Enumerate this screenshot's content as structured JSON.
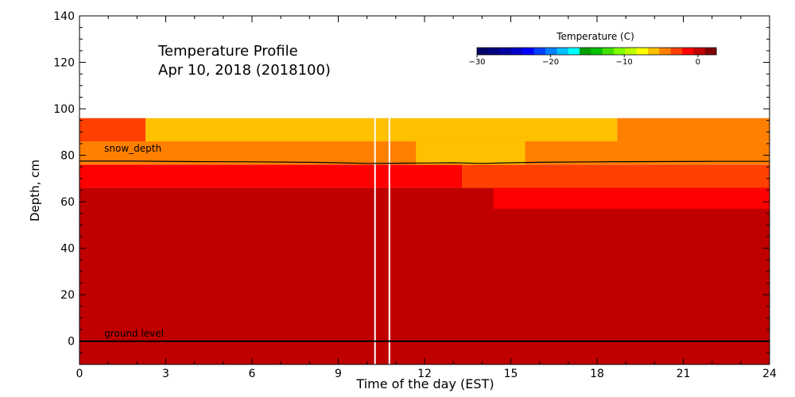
{
  "chart_data": {
    "type": "heatmap",
    "title_line1": "Temperature Profile",
    "title_line2": "Apr 10, 2018 (2018100)",
    "xlabel": "Time of the day (EST)",
    "ylabel": "Depth, cm",
    "xlim": [
      0,
      24
    ],
    "ylim": [
      -10,
      140
    ],
    "x_ticks": [
      0,
      3,
      6,
      9,
      12,
      15,
      18,
      21,
      24
    ],
    "y_ticks": [
      0,
      20,
      40,
      60,
      80,
      100,
      120,
      140
    ],
    "colorbar": {
      "title": "Temperature (C)",
      "range": [
        -30,
        2.5
      ],
      "tick_values": [
        -30,
        -20,
        -10,
        0
      ],
      "tick_labels": [
        "−30",
        "−20",
        "−10",
        "0"
      ],
      "colors": [
        "#000066",
        "#000080",
        "#0000a0",
        "#0000c8",
        "#0000ff",
        "#0040ff",
        "#0080ff",
        "#00c0ff",
        "#00ffff",
        "#00a000",
        "#00c000",
        "#40e000",
        "#80ff00",
        "#c0ff00",
        "#ffff00",
        "#ffc000",
        "#ff8000",
        "#ff4000",
        "#ff0000",
        "#c00000",
        "#800000"
      ]
    },
    "annotations": [
      {
        "text": "snow_depth",
        "x": 1.0,
        "y": 80.5
      },
      {
        "text": "ground level",
        "x": 1.0,
        "y": 1.0
      }
    ],
    "cells": [
      {
        "x0": 0,
        "x1": 24,
        "y0": -10,
        "y1": 66,
        "temp": 0.8
      },
      {
        "x0": 0,
        "x1": 13.3,
        "y0": 66,
        "y1": 76,
        "temp": -1
      },
      {
        "x0": 13.3,
        "x1": 24,
        "y0": 66,
        "y1": 76,
        "temp": -2.5
      },
      {
        "x0": 14.4,
        "x1": 24,
        "y0": 57,
        "y1": 66,
        "temp": -1
      },
      {
        "x0": 0,
        "x1": 24,
        "y0": 76,
        "y1": 86,
        "temp": -4
      },
      {
        "x0": 11.7,
        "x1": 15.5,
        "y0": 76,
        "y1": 86,
        "temp": -6.5
      },
      {
        "x0": 0,
        "x1": 2.3,
        "y0": 86,
        "y1": 96,
        "temp": -2.5
      },
      {
        "x0": 2.3,
        "x1": 18.7,
        "y0": 86,
        "y1": 96,
        "temp": -6.5
      },
      {
        "x0": 18.7,
        "x1": 24,
        "y0": 86,
        "y1": 96,
        "temp": -4
      }
    ],
    "gaps": [
      {
        "x0": 10.25,
        "x1": 10.3
      },
      {
        "x0": 10.75,
        "x1": 10.8
      }
    ],
    "series": [
      {
        "name": "snow_depth",
        "x": [
          0,
          2,
          4,
          6,
          8,
          9,
          10,
          11,
          12,
          13,
          14,
          15,
          16,
          18,
          20,
          22,
          24
        ],
        "y": [
          77.5,
          77.5,
          77.3,
          77.2,
          77.0,
          76.8,
          76.5,
          76.6,
          76.7,
          76.8,
          76.5,
          76.8,
          77.0,
          77.2,
          77.3,
          77.4,
          77.4
        ]
      },
      {
        "name": "ground level",
        "x": [
          0,
          24
        ],
        "y": [
          0,
          0
        ]
      }
    ]
  }
}
